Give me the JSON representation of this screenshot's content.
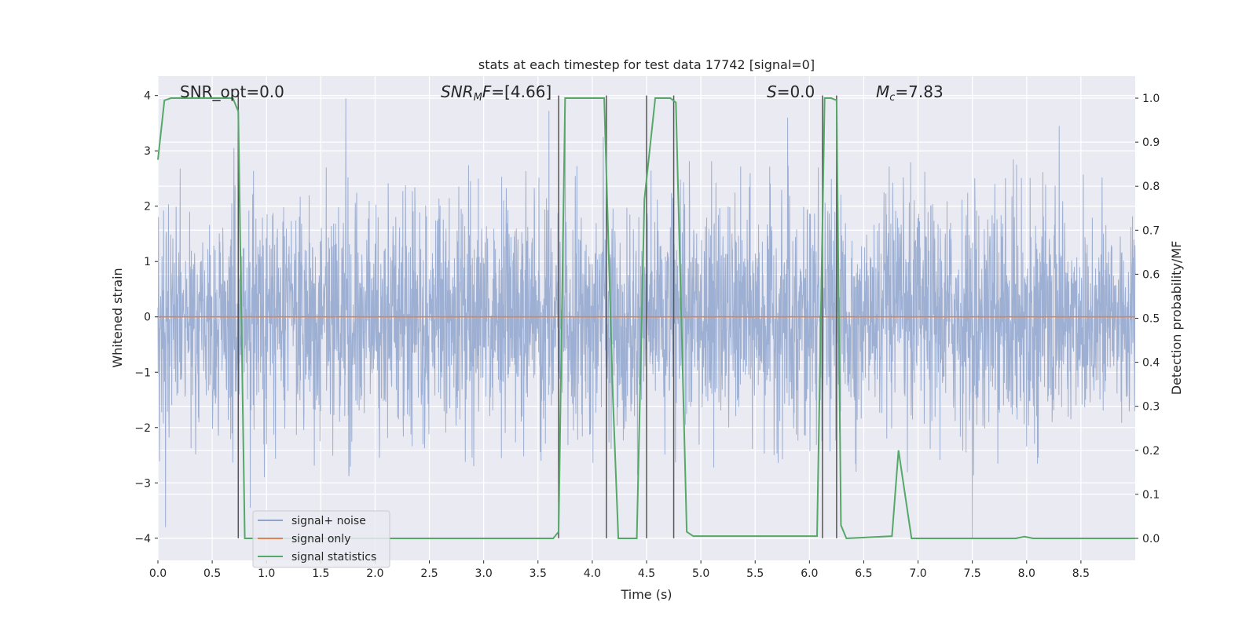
{
  "chart_data": {
    "type": "line",
    "title": "stats at each timestep for test data 17742 [signal=0]",
    "xlabel": "Time (s)",
    "ylabel_left": "Whitened strain",
    "ylabel_right": "Detection probability/MF",
    "xlim": [
      0,
      9.0
    ],
    "ylim_left": [
      -4.4,
      4.35
    ],
    "ylim_right": [
      -0.05,
      1.05
    ],
    "x_ticks": [
      0.0,
      0.5,
      1.0,
      1.5,
      2.0,
      2.5,
      3.0,
      3.5,
      4.0,
      4.5,
      5.0,
      5.5,
      6.0,
      6.5,
      7.0,
      7.5,
      8.0,
      8.5
    ],
    "x_tick_labels": [
      "0.0",
      "0.5",
      "1.0",
      "1.5",
      "2.0",
      "2.5",
      "3.0",
      "3.5",
      "4.0",
      "4.5",
      "5.0",
      "5.5",
      "6.0",
      "6.5",
      "7.0",
      "7.5",
      "8.0",
      "8.5"
    ],
    "y_left_ticks": [
      4,
      3,
      2,
      1,
      0,
      -1,
      -2,
      -3,
      -4
    ],
    "y_left_tick_labels": [
      "4",
      "3",
      "2",
      "1",
      "0",
      "−1",
      "−2",
      "−3",
      "−4"
    ],
    "y_right_ticks": [
      1.0,
      0.9,
      0.8,
      0.7,
      0.6,
      0.5,
      0.4,
      0.3,
      0.2,
      0.1,
      0.0
    ],
    "y_right_tick_labels": [
      "1.0",
      "0.9",
      "0.8",
      "0.7",
      "0.6",
      "0.5",
      "0.4",
      "0.3",
      "0.2",
      "0.1",
      "0.0"
    ],
    "grid": true,
    "legend_position": "lower-left",
    "legend": [
      {
        "label": "signal+ noise",
        "color": "#8fa4cc"
      },
      {
        "label": "signal only",
        "color": "#dd8452"
      },
      {
        "label": "signal statistics",
        "color": "#55a868"
      }
    ],
    "annotations": [
      {
        "label": "SNR_opt=0.0",
        "x": 0.2
      },
      {
        "label": "SNR_M F=[4.66]",
        "x": 2.6
      },
      {
        "label": "S=0.0",
        "x": 5.6
      },
      {
        "label": "M_c=7.83",
        "x": 6.6
      }
    ],
    "noise": {
      "name": "signal+ noise",
      "color": "#8fa4cc",
      "duration": 9.0,
      "sigma": 1.0,
      "peaks": [
        {
          "x": 0.07,
          "y": -3.8
        },
        {
          "x": 0.7,
          "y": 3.05
        },
        {
          "x": 0.85,
          "y": -3.45
        },
        {
          "x": 1.73,
          "y": 3.95
        },
        {
          "x": 3.6,
          "y": 3.72
        },
        {
          "x": 3.75,
          "y": 3.55
        },
        {
          "x": 4.1,
          "y": 3.25
        },
        {
          "x": 5.8,
          "y": 3.6
        },
        {
          "x": 7.5,
          "y": -4.0
        },
        {
          "x": 8.3,
          "y": 3.45
        }
      ]
    },
    "signal_only": {
      "name": "signal only",
      "color": "#dd8452",
      "value": 0.0
    },
    "signal_statistics": {
      "name": "signal statistics",
      "color": "#55a868",
      "x": [
        0.0,
        0.06,
        0.12,
        0.69,
        0.74,
        0.8,
        3.64,
        3.69,
        3.75,
        4.11,
        4.19,
        4.24,
        4.41,
        4.48,
        4.58,
        4.72,
        4.77,
        4.87,
        4.93,
        6.07,
        6.14,
        6.2,
        6.25,
        6.29,
        6.34,
        6.76,
        6.82,
        6.94,
        7.9,
        7.98,
        8.06,
        9.0
      ],
      "y": [
        0.86,
        0.995,
        1.0,
        1.0,
        0.97,
        0.0,
        0.0,
        0.015,
        1.0,
        1.0,
        0.32,
        0.0,
        0.0,
        0.77,
        1.0,
        1.0,
        0.99,
        0.015,
        0.005,
        0.005,
        1.0,
        1.0,
        0.995,
        0.03,
        0.0,
        0.005,
        0.2,
        0.0,
        0.0,
        0.004,
        0.0,
        0.0
      ]
    },
    "vertical_lines": [
      0.74,
      3.69,
      4.13,
      4.5,
      4.75,
      6.12,
      6.25
    ],
    "vertical_line_color": "#555555"
  }
}
